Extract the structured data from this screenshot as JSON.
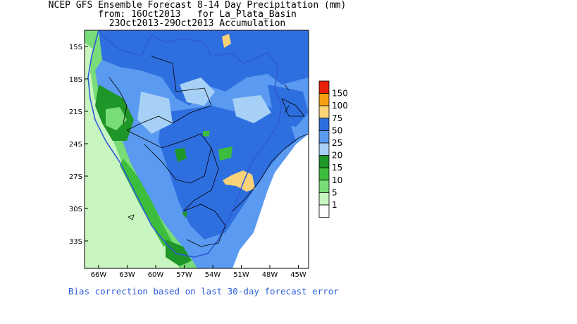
{
  "title": {
    "line1": "NCEP GFS Ensemble Forecast 8-14 Day Precipitation (mm)",
    "line2": "from: 16Oct2013   for La_Plata_Basin",
    "line3": "23Oct2013-29Oct2013 Accumulation"
  },
  "axes": {
    "lat_ticks": [
      "15S",
      "18S",
      "21S",
      "24S",
      "27S",
      "30S",
      "33S"
    ],
    "lon_ticks": [
      "66W",
      "63W",
      "60W",
      "57W",
      "54W",
      "51W",
      "48W",
      "45W"
    ]
  },
  "legend": {
    "items": [
      {
        "label": "150",
        "color": "#e8200a"
      },
      {
        "label": "100",
        "color": "#f5a014"
      },
      {
        "label": "75",
        "color": "#fad278"
      },
      {
        "label": "50",
        "color": "#2e6fe0"
      },
      {
        "label": "25",
        "color": "#5a9af0"
      },
      {
        "label": "20",
        "color": "#a6d0f5"
      },
      {
        "label": "15",
        "color": "#1e9628"
      },
      {
        "label": "10",
        "color": "#3cbe3c"
      },
      {
        "label": "5",
        "color": "#78dc78"
      },
      {
        "label": "1",
        "color": "#c8f5c0"
      },
      {
        "label": "",
        "color": "#ffffff"
      }
    ]
  },
  "footnote": "Bias correction based on last 30-day forecast error"
}
